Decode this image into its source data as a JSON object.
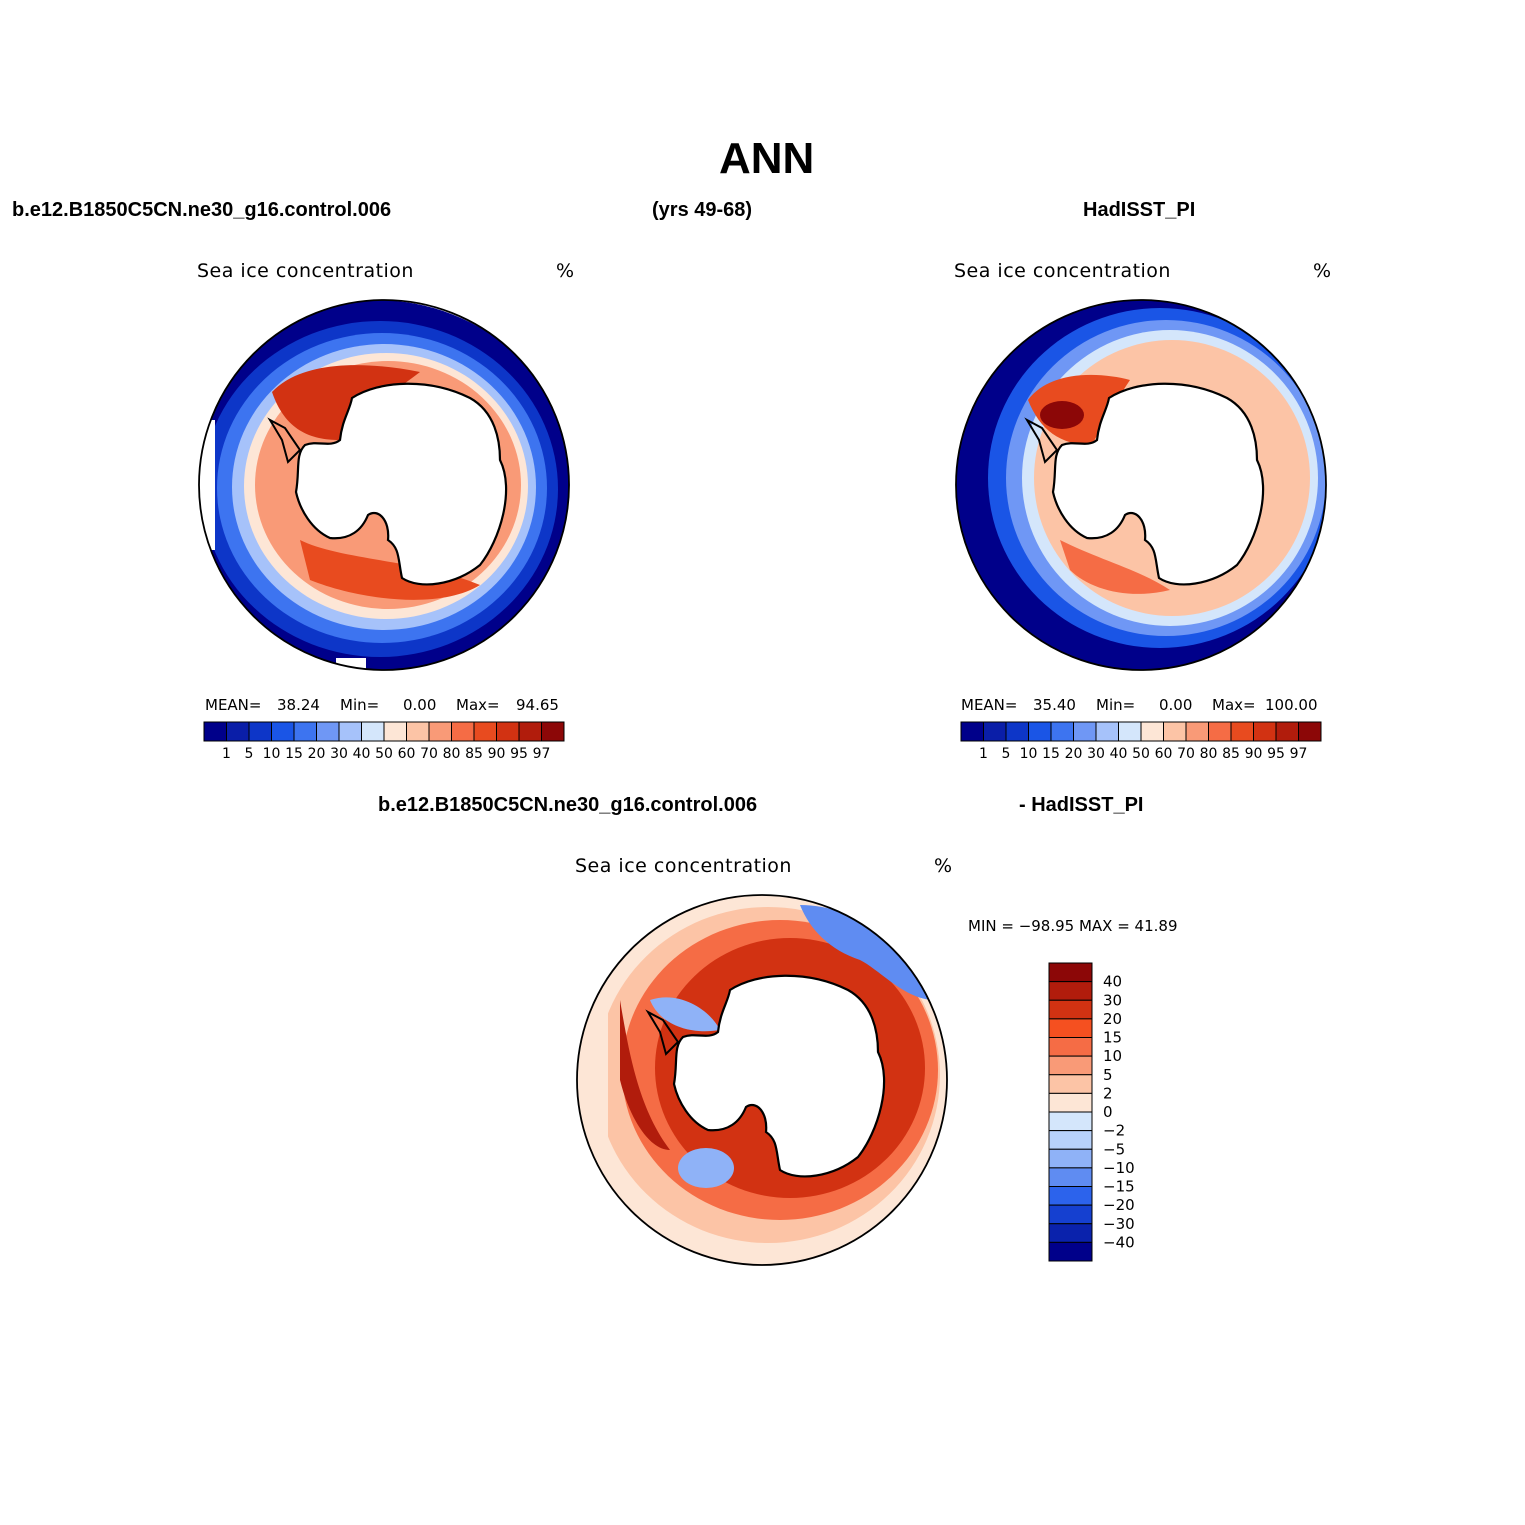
{
  "title": "ANN",
  "header": {
    "model": "b.e12.B1850C5CN.ne30_g16.control.006",
    "years": "(yrs 49-68)",
    "obs": "HadISST_PI"
  },
  "panels": [
    {
      "id": "model",
      "label": "Sea ice concentration",
      "unit": "%",
      "stats": {
        "mean_label": "MEAN=",
        "mean": "38.24",
        "min_label": "Min=",
        "min": "0.00",
        "max_label": "Max=",
        "max": "94.65"
      }
    },
    {
      "id": "obs",
      "label": "Sea ice concentration",
      "unit": "%",
      "stats": {
        "mean_label": "MEAN=",
        "mean": "35.40",
        "min_label": "Min=",
        "min": "0.00",
        "max_label": "Max=",
        "max": "100.00"
      }
    }
  ],
  "diff_panel": {
    "header_left": "b.e12.B1850C5CN.ne30_g16.control.006",
    "header_right": "- HadISST_PI",
    "label": "Sea ice concentration",
    "unit": "%",
    "minmax": "MIN = −98.95  MAX =   41.89"
  },
  "colorbar_abs": {
    "ticks": [
      "1",
      "5",
      "10",
      "15",
      "20",
      "30",
      "40",
      "50",
      "60",
      "70",
      "80",
      "85",
      "90",
      "95",
      "97"
    ],
    "colors": [
      "#00008a",
      "#0a1ea8",
      "#0d36c8",
      "#1a55e6",
      "#3d74f0",
      "#6f97f5",
      "#a6c2fa",
      "#d4e6fb",
      "#fde6d6",
      "#fcc4a6",
      "#f99a77",
      "#f56c45",
      "#e84b1f",
      "#d23212",
      "#b11c0c",
      "#8c0707"
    ]
  },
  "colorbar_diff": {
    "ticks": [
      "40",
      "30",
      "20",
      "15",
      "10",
      "5",
      "2",
      "0",
      "−2",
      "−5",
      "−10",
      "−15",
      "−20",
      "−30",
      "−40"
    ],
    "colors": [
      "#8c0707",
      "#b11c0c",
      "#d23212",
      "#f55020",
      "#f56c45",
      "#f99a77",
      "#fcc4a6",
      "#fde6d6",
      "#d4e6fb",
      "#b8d2fb",
      "#8fb2f7",
      "#5f8cf2",
      "#2c63ec",
      "#1540d0",
      "#0a22ac",
      "#00008a"
    ]
  }
}
